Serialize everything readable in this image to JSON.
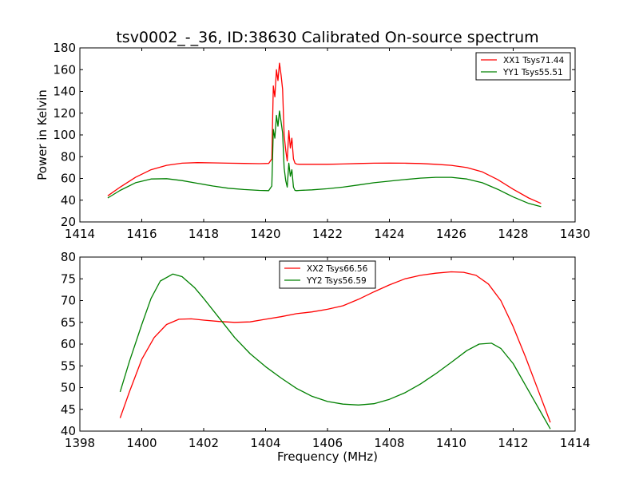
{
  "title": "tsv0002_-_36, ID:38630 Calibrated On-source spectrum",
  "colors": {
    "red": "#ff0000",
    "green": "#008000"
  },
  "chart_data": [
    {
      "type": "line",
      "ylabel": "Power in Kelvin",
      "xlabel": "",
      "xlim": [
        1414,
        1430
      ],
      "ylim": [
        20,
        180
      ],
      "xticks": [
        1414,
        1416,
        1418,
        1420,
        1422,
        1424,
        1426,
        1428,
        1430
      ],
      "yticks": [
        20,
        40,
        60,
        80,
        100,
        120,
        140,
        160,
        180
      ],
      "legend_position": "top-right",
      "series": [
        {
          "name": "XX1 Tsys71.44",
          "color": "#ff0000",
          "x": [
            1414.9,
            1415.3,
            1415.8,
            1416.3,
            1416.8,
            1417.3,
            1417.8,
            1418.3,
            1418.8,
            1419.3,
            1419.8,
            1420.1,
            1420.2,
            1420.25,
            1420.3,
            1420.35,
            1420.4,
            1420.45,
            1420.5,
            1420.55,
            1420.6,
            1420.65,
            1420.7,
            1420.75,
            1420.8,
            1420.85,
            1420.9,
            1420.95,
            1421.0,
            1421.1,
            1421.5,
            1422.0,
            1422.5,
            1423.0,
            1423.5,
            1424.0,
            1424.5,
            1425.0,
            1425.5,
            1426.0,
            1426.5,
            1427.0,
            1427.5,
            1428.0,
            1428.5,
            1428.9
          ],
          "y": [
            44,
            52,
            61,
            68,
            72,
            74,
            74.5,
            74.3,
            74,
            73.8,
            73.6,
            73.8,
            78,
            145,
            135,
            160,
            150,
            166,
            155,
            142,
            100,
            86,
            76,
            104,
            88,
            97,
            78,
            74,
            73.2,
            73,
            73,
            73,
            73.3,
            73.7,
            74,
            74.1,
            74,
            73.7,
            73,
            72,
            70,
            66,
            59,
            50,
            42,
            37
          ]
        },
        {
          "name": "YY1 Tsys55.51",
          "color": "#008000",
          "x": [
            1414.9,
            1415.3,
            1415.8,
            1416.3,
            1416.8,
            1417.3,
            1417.8,
            1418.3,
            1418.8,
            1419.3,
            1419.8,
            1420.1,
            1420.2,
            1420.25,
            1420.3,
            1420.35,
            1420.4,
            1420.45,
            1420.5,
            1420.55,
            1420.6,
            1420.65,
            1420.7,
            1420.75,
            1420.8,
            1420.85,
            1420.9,
            1420.95,
            1421.0,
            1421.1,
            1421.5,
            1422.0,
            1422.5,
            1423.0,
            1423.5,
            1424.0,
            1424.5,
            1425.0,
            1425.5,
            1426.0,
            1426.5,
            1427.0,
            1427.5,
            1428.0,
            1428.5,
            1428.9
          ],
          "y": [
            42,
            49,
            56,
            59.5,
            59.8,
            58,
            55.5,
            53,
            51,
            49.8,
            49,
            48.8,
            53,
            105,
            97,
            118,
            108,
            122,
            112,
            102,
            70,
            58,
            52,
            74,
            62,
            68,
            52,
            49,
            48.8,
            49,
            49.5,
            50.5,
            52,
            54,
            56,
            57.5,
            59,
            60.3,
            61,
            61,
            59.5,
            56,
            50,
            43,
            37,
            34
          ]
        }
      ]
    },
    {
      "type": "line",
      "ylabel": "",
      "xlabel": "Frequency (MHz)",
      "xlim": [
        1398,
        1414
      ],
      "ylim": [
        40,
        80
      ],
      "xticks": [
        1398,
        1400,
        1402,
        1404,
        1406,
        1408,
        1410,
        1412,
        1414
      ],
      "yticks": [
        40,
        45,
        50,
        55,
        60,
        65,
        70,
        75,
        80
      ],
      "legend_position": "upper-center",
      "series": [
        {
          "name": "XX2 Tsys66.56",
          "color": "#ff0000",
          "x": [
            1399.3,
            1399.6,
            1400.0,
            1400.4,
            1400.8,
            1401.2,
            1401.6,
            1402.0,
            1402.5,
            1403.0,
            1403.5,
            1404.0,
            1404.5,
            1405.0,
            1405.5,
            1406.0,
            1406.5,
            1407.0,
            1407.5,
            1408.0,
            1408.5,
            1409.0,
            1409.5,
            1410.0,
            1410.4,
            1410.8,
            1411.2,
            1411.6,
            1412.0,
            1412.4,
            1412.8,
            1413.2
          ],
          "y": [
            43,
            49,
            56.5,
            61.5,
            64.5,
            65.7,
            65.8,
            65.5,
            65.2,
            65,
            65.1,
            65.7,
            66.3,
            67,
            67.4,
            68,
            68.8,
            70.3,
            72,
            73.6,
            75,
            75.8,
            76.3,
            76.6,
            76.5,
            75.8,
            73.8,
            70,
            64,
            57,
            49.5,
            42
          ]
        },
        {
          "name": "YY2 Tsys56.59",
          "color": "#008000",
          "x": [
            1399.3,
            1399.6,
            1400.0,
            1400.3,
            1400.6,
            1401.0,
            1401.3,
            1401.7,
            1402.0,
            1402.5,
            1403.0,
            1403.5,
            1404.0,
            1404.5,
            1405.0,
            1405.5,
            1406.0,
            1406.5,
            1407.0,
            1407.5,
            1408.0,
            1408.5,
            1409.0,
            1409.5,
            1410.0,
            1410.5,
            1410.9,
            1411.3,
            1411.6,
            1412.0,
            1412.4,
            1412.8,
            1413.2
          ],
          "y": [
            49,
            56,
            64.5,
            70.5,
            74.5,
            76.1,
            75.5,
            73,
            70.5,
            66,
            61.5,
            57.8,
            54.8,
            52.2,
            49.8,
            48,
            46.8,
            46.2,
            46,
            46.3,
            47.3,
            48.8,
            50.8,
            53.2,
            55.8,
            58.5,
            60,
            60.2,
            59,
            55.5,
            50.5,
            45.5,
            40.5
          ]
        }
      ]
    }
  ]
}
